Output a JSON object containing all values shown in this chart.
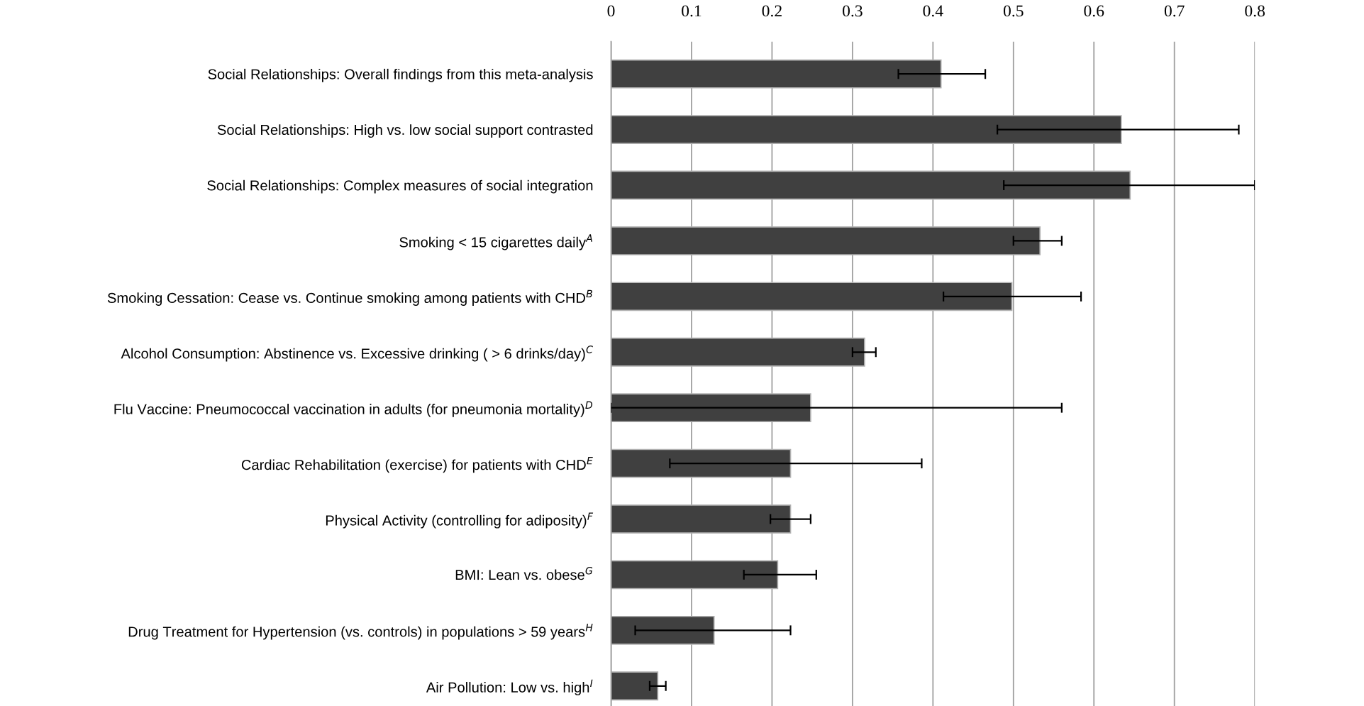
{
  "chart_data": {
    "type": "bar",
    "orientation": "horizontal",
    "categories": [
      "Social Relationships: Overall findings from this meta-analysis",
      "Social Relationships: High vs. low social support contrasted",
      "Social Relationships: Complex measures of social integration",
      "Smoking < 15 cigarettes daily$^{A}$",
      "Smoking Cessation: Cease vs. Continue smoking among patients with CHD$^{B}$",
      "Alcohol Consumption: Abstinence vs. Excessive drinking ( > 6 drinks/day)$^{C}$",
      "Flu Vaccine: Pneumococcal vaccination in adults (for pneumonia mortality)$^{D}$",
      "Cardiac Rehabilitation (exercise) for patients with CHD$^{E}$",
      "Physical Activity (controlling for adiposity)$^{F}$",
      "BMI: Lean vs. obese$^{G}$",
      "Drug Treatment for Hypertension (vs. controls) in populations > 59 years$^{H}$",
      "Air Pollution: Low vs. high$^{I}$"
    ],
    "values": [
      0.41,
      0.634,
      0.645,
      0.533,
      0.498,
      0.315,
      0.248,
      0.223,
      0.223,
      0.207,
      0.128,
      0.058
    ],
    "errors": [
      [
        0.357,
        0.465
      ],
      [
        0.48,
        0.78
      ],
      [
        0.488,
        0.8
      ],
      [
        0.5,
        0.56
      ],
      [
        0.413,
        0.584
      ],
      [
        0.3,
        0.329
      ],
      [
        0.0,
        0.56
      ],
      [
        0.073,
        0.386
      ],
      [
        0.198,
        0.248
      ],
      [
        0.165,
        0.255
      ],
      [
        0.03,
        0.223
      ],
      [
        0.048,
        0.068
      ]
    ],
    "color": "#404040",
    "xlim": [
      0,
      0.8
    ],
    "xticks": [
      0,
      0.1,
      0.2,
      0.3,
      0.4,
      0.5,
      0.6,
      0.7,
      0.8
    ],
    "grid": "x",
    "legend": false
  }
}
